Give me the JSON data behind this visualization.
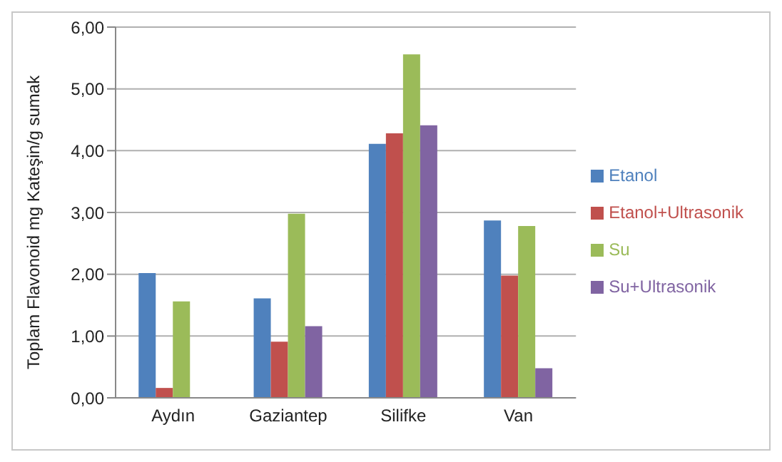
{
  "chart_data": {
    "type": "bar",
    "ylabel": "Toplam Flavonoid mg Kateşin/g sumak",
    "categories": [
      "Aydın",
      "Gaziantep",
      "Silifke",
      "Van"
    ],
    "series": [
      {
        "name": "Etanol",
        "color": "#4f81bd",
        "values": [
          2.02,
          1.61,
          4.11,
          2.87
        ]
      },
      {
        "name": "Etanol+Ultrasonik",
        "color": "#c0504d",
        "values": [
          0.16,
          0.91,
          4.28,
          1.98
        ]
      },
      {
        "name": "Su",
        "color": "#9bbb59",
        "values": [
          1.56,
          2.98,
          5.56,
          2.78
        ]
      },
      {
        "name": "Su+Ultrasonik",
        "color": "#8064a2",
        "values": [
          null,
          1.16,
          4.41,
          0.48
        ]
      }
    ],
    "ylim": [
      0,
      6
    ],
    "yticks": [
      {
        "value": 0,
        "label": "0,00"
      },
      {
        "value": 1,
        "label": "1,00"
      },
      {
        "value": 2,
        "label": "2,00"
      },
      {
        "value": 3,
        "label": "3,00"
      },
      {
        "value": 4,
        "label": "4,00"
      },
      {
        "value": 5,
        "label": "5,00"
      },
      {
        "value": 6,
        "label": "6,00"
      }
    ],
    "grid": "y",
    "legend": "right"
  }
}
